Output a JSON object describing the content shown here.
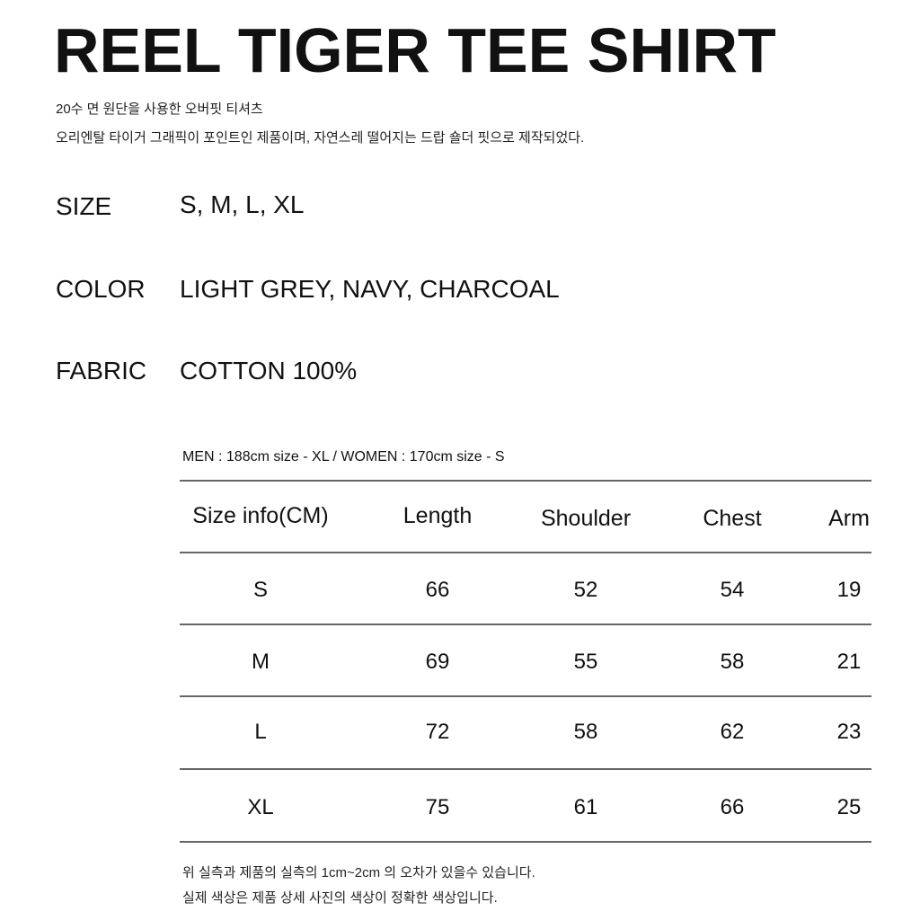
{
  "title": "REEL TIGER TEE SHIRT",
  "description": [
    "20수 면 원단을 사용한 오버핏 티셔츠",
    "오리엔탈 타이거 그래픽이 포인트인 제품이며, 자연스레 떨어지는 드랍 숄더 핏으로 제작되었다."
  ],
  "specs": [
    {
      "label": "SIZE",
      "value": "S, M, L, XL"
    },
    {
      "label": "COLOR",
      "value": "LIGHT GREY, NAVY, CHARCOAL"
    },
    {
      "label": "FABRIC",
      "value": "COTTON 100%"
    }
  ],
  "model_note": "MEN : 188cm  size - XL / WOMEN : 170cm  size - S",
  "table": {
    "headers": [
      "Size info(CM)",
      "Length",
      "Shoulder",
      "Chest",
      "Arm"
    ],
    "rows": [
      [
        "S",
        "66",
        "52",
        "54",
        "19"
      ],
      [
        "M",
        "69",
        "55",
        "58",
        "21"
      ],
      [
        "L",
        "72",
        "58",
        "62",
        "23"
      ],
      [
        "XL",
        "75",
        "61",
        "66",
        "25"
      ]
    ]
  },
  "footnotes": [
    "위 실측과 제품의 실측의 1cm~2cm 의 오차가 있을수 있습니다.",
    "실제 색상은 제품 상세 사진의 색상이 정확한 색상입니다."
  ]
}
